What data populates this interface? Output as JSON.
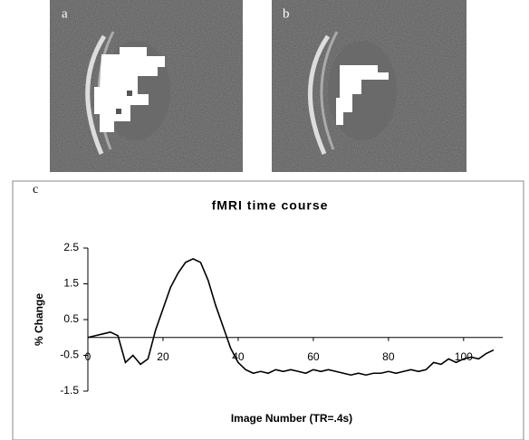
{
  "figure": {
    "panels": [
      "a",
      "b",
      "c"
    ]
  },
  "chart_data": {
    "type": "line",
    "title": "fMRI time course",
    "x_label": "Image Number (TR=.4s)",
    "y_label": "% Change",
    "x": [
      0,
      2,
      4,
      6,
      8,
      10,
      12,
      14,
      16,
      18,
      20,
      22,
      24,
      26,
      28,
      30,
      32,
      34,
      36,
      38,
      40,
      42,
      44,
      46,
      48,
      50,
      52,
      54,
      56,
      58,
      60,
      62,
      64,
      66,
      68,
      70,
      72,
      74,
      76,
      78,
      80,
      82,
      84,
      86,
      88,
      90,
      92,
      94,
      96,
      98,
      100,
      102,
      104,
      106,
      108
    ],
    "values": [
      0,
      0.05,
      0.1,
      0.15,
      0.05,
      -0.7,
      -0.5,
      -0.75,
      -0.6,
      0.2,
      0.8,
      1.4,
      1.8,
      2.1,
      2.2,
      2.1,
      1.6,
      0.9,
      0.3,
      -0.3,
      -0.7,
      -0.9,
      -1.0,
      -0.95,
      -1.0,
      -0.9,
      -0.95,
      -0.9,
      -0.95,
      -1.0,
      -0.9,
      -0.95,
      -0.9,
      -0.95,
      -1.0,
      -1.05,
      -1.0,
      -1.05,
      -1.0,
      -1.0,
      -0.95,
      -1.0,
      -0.95,
      -0.9,
      -0.95,
      -0.9,
      -0.7,
      -0.75,
      -0.6,
      -0.7,
      -0.6,
      -0.55,
      -0.6,
      -0.45,
      -0.35
    ],
    "color": "#000000",
    "xlim": [
      0,
      108
    ],
    "xticks": [
      0,
      20,
      40,
      60,
      80,
      100
    ],
    "ylim": [
      -1.5,
      2.5
    ],
    "yticks": [
      -1.5,
      -0.5,
      0.5,
      1.5,
      2.5
    ]
  }
}
